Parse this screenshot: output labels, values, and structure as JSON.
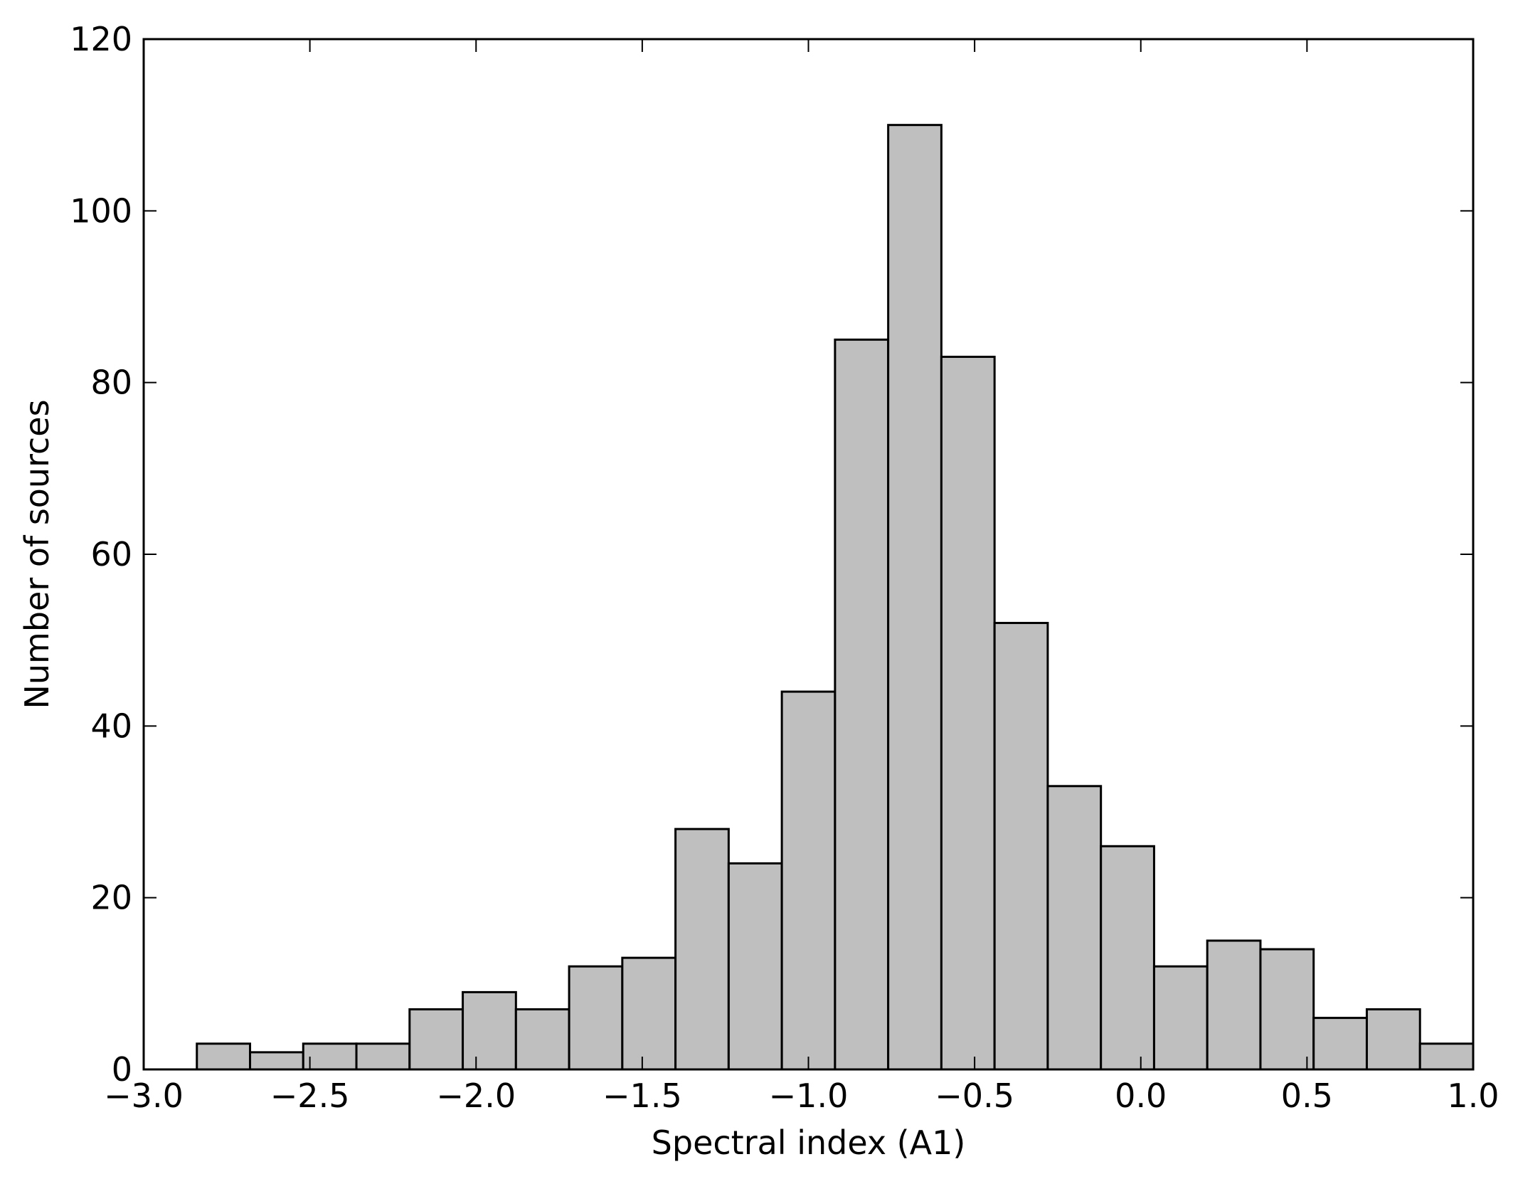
{
  "chart_data": {
    "type": "bar",
    "xlabel": "Spectral index (A1)",
    "ylabel": "Number of sources",
    "xlim": [
      -3.0,
      1.0
    ],
    "ylim": [
      0,
      120
    ],
    "x_ticks": [
      -3.0,
      -2.5,
      -2.0,
      -1.5,
      -1.0,
      -0.5,
      0.0,
      0.5,
      1.0
    ],
    "x_tick_labels": [
      "−3.0",
      "−2.5",
      "−2.0",
      "−1.5",
      "−1.0",
      "−0.5",
      "0.0",
      "0.5",
      "1.0"
    ],
    "y_ticks": [
      0,
      20,
      40,
      60,
      80,
      100,
      120
    ],
    "y_tick_labels": [
      "0",
      "20",
      "40",
      "60",
      "80",
      "100",
      "120"
    ],
    "bin_edges": [
      -3.0,
      -2.84,
      -2.68,
      -2.52,
      -2.36,
      -2.2,
      -2.04,
      -1.88,
      -1.72,
      -1.56,
      -1.4,
      -1.24,
      -1.08,
      -0.92,
      -0.76,
      -0.6,
      -0.44,
      -0.28,
      -0.12,
      0.04,
      0.2,
      0.36,
      0.52,
      0.68,
      0.84,
      1.0
    ],
    "values": [
      0,
      3,
      2,
      3,
      3,
      7,
      9,
      7,
      12,
      13,
      28,
      24,
      44,
      85,
      110,
      83,
      52,
      33,
      26,
      12,
      15,
      14,
      6,
      7,
      3
    ],
    "bar_color": "#bfbfbf",
    "edge_color": "#000000",
    "grid": false,
    "legend": false
  }
}
